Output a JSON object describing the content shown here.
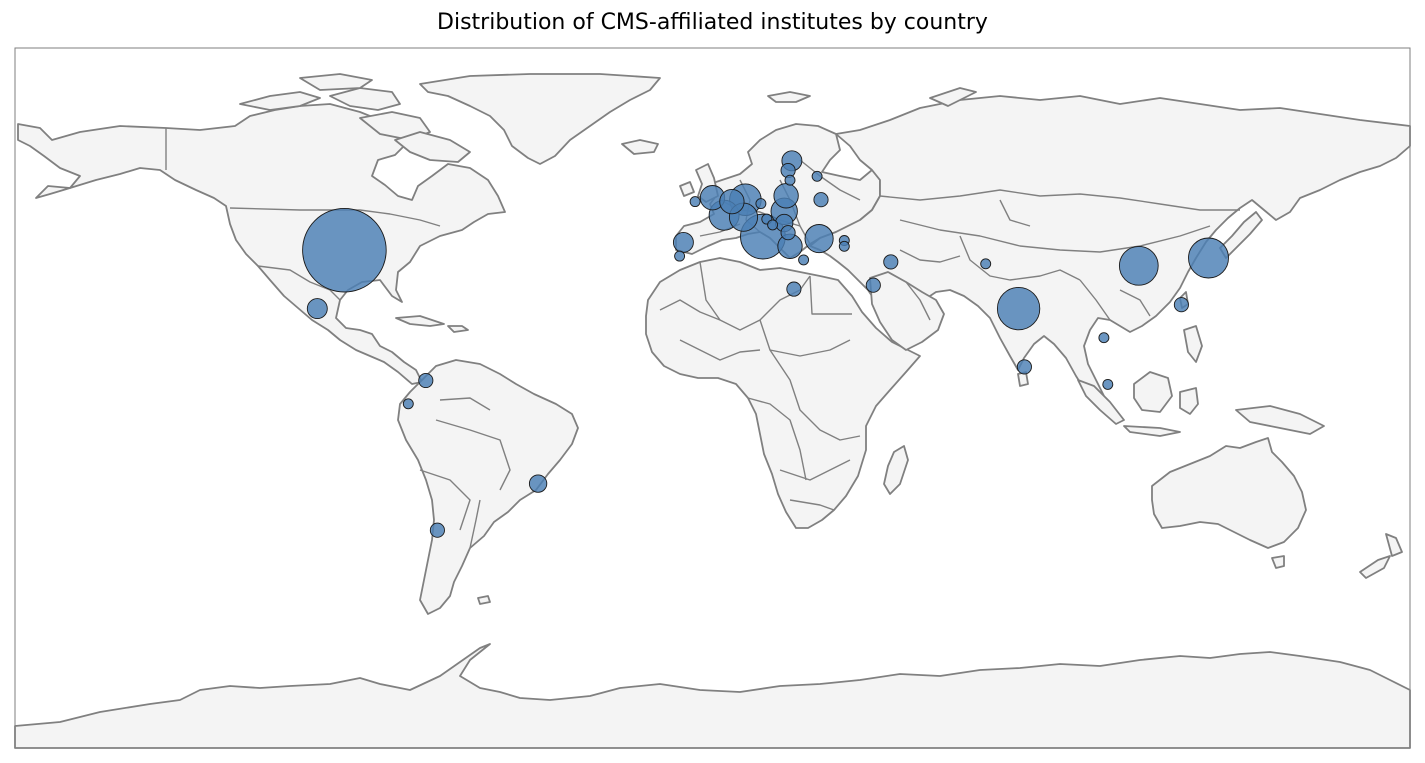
{
  "chart_data": {
    "type": "bubble-map",
    "title": "Distribution of CMS-affiliated institutes by country",
    "projection": "plate-carree",
    "lon_range": [
      -180,
      180
    ],
    "lat_range": [
      -90,
      90
    ],
    "colors": {
      "bubble_fill": "#4a7fb4",
      "bubble_edge": "#1a1a1a",
      "land": "#f4f4f4",
      "coastline": "#808080"
    },
    "series": [
      {
        "points": [
          {
            "lon": -95,
            "lat": 38,
            "value": 70
          },
          {
            "lon": -102,
            "lat": 23,
            "value": 4
          },
          {
            "lon": -74,
            "lat": 4.5,
            "value": 2
          },
          {
            "lon": -78.5,
            "lat": -1.5,
            "value": 1
          },
          {
            "lon": -71,
            "lat": -34,
            "value": 2
          },
          {
            "lon": -45,
            "lat": -22,
            "value": 3
          },
          {
            "lon": -7.5,
            "lat": 40,
            "value": 4
          },
          {
            "lon": -8.5,
            "lat": 36.5,
            "value": 1
          },
          {
            "lon": -4.5,
            "lat": 50.5,
            "value": 1
          },
          {
            "lon": 0,
            "lat": 51.5,
            "value": 6
          },
          {
            "lon": 5,
            "lat": 50.5,
            "value": 6
          },
          {
            "lon": 3,
            "lat": 47,
            "value": 9
          },
          {
            "lon": 8.5,
            "lat": 51,
            "value": 10
          },
          {
            "lon": 8,
            "lat": 46.5,
            "value": 8
          },
          {
            "lon": 12.5,
            "lat": 50,
            "value": 1
          },
          {
            "lon": 13,
            "lat": 41.5,
            "value": 20
          },
          {
            "lon": 14,
            "lat": 46,
            "value": 1
          },
          {
            "lon": 15.5,
            "lat": 44.5,
            "value": 1
          },
          {
            "lon": 19,
            "lat": 52,
            "value": 6
          },
          {
            "lon": 18.5,
            "lat": 48,
            "value": 7
          },
          {
            "lon": 18.5,
            "lat": 45,
            "value": 3
          },
          {
            "lon": 19.5,
            "lat": 42.5,
            "value": 2
          },
          {
            "lon": 20,
            "lat": 39,
            "value": 6
          },
          {
            "lon": 20.5,
            "lat": 61,
            "value": 4
          },
          {
            "lon": 19.5,
            "lat": 58.5,
            "value": 2
          },
          {
            "lon": 20,
            "lat": 56,
            "value": 1
          },
          {
            "lon": 27,
            "lat": 57,
            "value": 1
          },
          {
            "lon": 28,
            "lat": 51,
            "value": 2
          },
          {
            "lon": 27.5,
            "lat": 41,
            "value": 8
          },
          {
            "lon": 23.5,
            "lat": 35.5,
            "value": 1
          },
          {
            "lon": 34,
            "lat": 40.5,
            "value": 1
          },
          {
            "lon": 34,
            "lat": 39,
            "value": 1
          },
          {
            "lon": 21,
            "lat": 28,
            "value": 2
          },
          {
            "lon": 41.5,
            "lat": 29,
            "value": 2
          },
          {
            "lon": 46,
            "lat": 35,
            "value": 2
          },
          {
            "lon": 70.5,
            "lat": 34.5,
            "value": 1
          },
          {
            "lon": 79,
            "lat": 23,
            "value": 18
          },
          {
            "lon": 80.5,
            "lat": 8,
            "value": 2
          },
          {
            "lon": 110,
            "lat": 34,
            "value": 15
          },
          {
            "lon": 128,
            "lat": 36,
            "value": 16
          },
          {
            "lon": 121,
            "lat": 24,
            "value": 2
          },
          {
            "lon": 101,
            "lat": 15.5,
            "value": 1
          },
          {
            "lon": 102,
            "lat": 3.5,
            "value": 1
          }
        ]
      }
    ]
  }
}
